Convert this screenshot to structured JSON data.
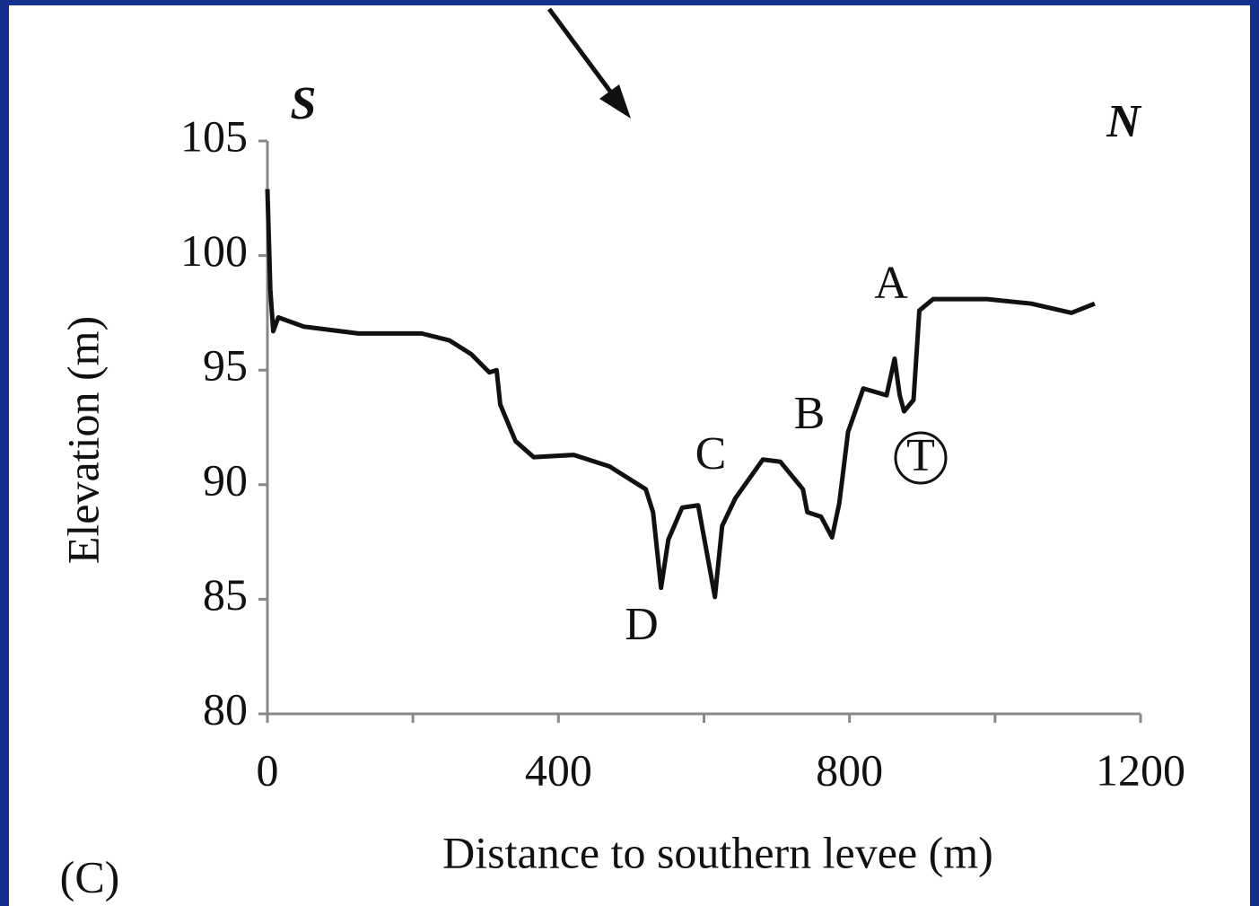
{
  "chart_data": {
    "type": "line",
    "x_label": "Distance to southern levee (m)",
    "y_label": "Elevation (m)",
    "panel_label": "(C)",
    "direction_labels": [
      "S",
      "N"
    ],
    "annotations": [
      "A",
      "B",
      "C",
      "D",
      "T"
    ],
    "xlim": [
      0,
      1200
    ],
    "ylim": [
      80,
      105
    ],
    "xticks": [
      0,
      400,
      800,
      1200
    ],
    "xminorticks": [
      200,
      600,
      1000
    ],
    "yticks": [
      80,
      85,
      90,
      95,
      100,
      105
    ],
    "color": "#111111",
    "series": [
      {
        "name": "Elevation profile",
        "x": [
          0,
          4,
          8,
          15,
          50,
          125,
          212,
          250,
          280,
          305,
          315,
          320,
          341,
          366,
          421,
          470,
          520,
          530,
          541,
          551,
          570,
          592,
          607,
          615,
          625,
          643,
          681,
          705,
          736,
          742,
          761,
          776,
          786,
          798,
          819,
          851,
          862,
          869,
          875,
          888,
          896,
          915,
          989,
          1050,
          1105,
          1137
        ],
        "values": [
          102.9,
          98.5,
          96.7,
          97.3,
          96.9,
          96.6,
          96.6,
          96.3,
          95.7,
          94.9,
          95.0,
          93.5,
          91.9,
          91.2,
          91.3,
          90.8,
          89.8,
          88.8,
          85.5,
          87.6,
          89.0,
          89.1,
          86.5,
          85.1,
          88.2,
          89.4,
          91.1,
          91.0,
          89.8,
          88.8,
          88.6,
          87.7,
          89.2,
          92.3,
          94.2,
          93.9,
          95.5,
          93.9,
          93.2,
          93.7,
          97.6,
          98.1,
          98.1,
          97.9,
          97.5,
          97.9
        ]
      }
    ]
  }
}
